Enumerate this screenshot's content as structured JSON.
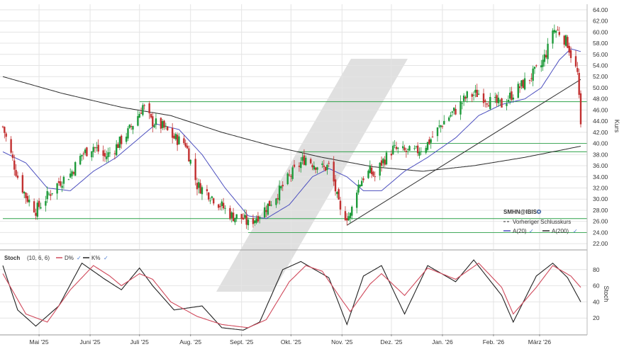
{
  "chart_data": [
    {
      "type": "candlestick",
      "panel": "price",
      "ylabel": "Kurs",
      "ylim": [
        21.0,
        65.0
      ],
      "yticks": [
        22,
        24,
        26,
        28,
        30,
        32,
        34,
        36,
        38,
        40,
        42,
        44,
        46,
        48,
        50,
        52,
        54,
        56,
        58,
        60,
        62,
        64
      ],
      "ytick_labels": [
        "22.00",
        "24.00",
        "26.00",
        "28.00",
        "30.00",
        "32.00",
        "34.00",
        "36.00",
        "38.00",
        "40.00",
        "42.00",
        "44.00",
        "46.00",
        "48.00",
        "50.00",
        "52.00",
        "54.00",
        "56.00",
        "58.00",
        "60.00",
        "62.00",
        "64.00"
      ],
      "x_months": [
        "Mai '25",
        "Juni '25",
        "Juli '25",
        "Aug. '25",
        "Sept. '25",
        "Okt. '25",
        "Nov. '25",
        "Dez. '25",
        "Jan. '26",
        "Feb. '26",
        "März '26"
      ],
      "grid": true,
      "legend": {
        "placement": "bottom-right",
        "symbol": "SMHN@IBIS",
        "previous_close_label": "Vorheriger Schlusskurs",
        "ma20_label": "A(20)",
        "ma200_label": "A(200)"
      },
      "close_path": [
        {
          "date": "2025-04-09",
          "close": 43.0
        },
        {
          "date": "2025-04-14",
          "close": 38.0
        },
        {
          "date": "2025-04-18",
          "close": 34.0
        },
        {
          "date": "2025-04-23",
          "close": 30.5
        },
        {
          "date": "2025-04-29",
          "close": 28.0
        },
        {
          "date": "2025-05-06",
          "close": 30.5
        },
        {
          "date": "2025-05-13",
          "close": 33.0
        },
        {
          "date": "2025-05-20",
          "close": 34.5
        },
        {
          "date": "2025-05-27",
          "close": 38.0
        },
        {
          "date": "2025-06-03",
          "close": 39.5
        },
        {
          "date": "2025-06-10",
          "close": 37.5
        },
        {
          "date": "2025-06-17",
          "close": 39.5
        },
        {
          "date": "2025-06-24",
          "close": 42.0
        },
        {
          "date": "2025-07-01",
          "close": 45.5
        },
        {
          "date": "2025-07-03",
          "close": 46.8
        },
        {
          "date": "2025-07-08",
          "close": 44.0
        },
        {
          "date": "2025-07-15",
          "close": 43.0
        },
        {
          "date": "2025-07-22",
          "close": 41.0
        },
        {
          "date": "2025-07-29",
          "close": 40.0
        },
        {
          "date": "2025-08-05",
          "close": 32.5
        },
        {
          "date": "2025-08-12",
          "close": 31.0
        },
        {
          "date": "2025-08-19",
          "close": 29.0
        },
        {
          "date": "2025-08-26",
          "close": 27.0
        },
        {
          "date": "2025-09-02",
          "close": 26.5
        },
        {
          "date": "2025-09-05",
          "close": 25.5
        },
        {
          "date": "2025-09-09",
          "close": 26.5
        },
        {
          "date": "2025-09-16",
          "close": 28.5
        },
        {
          "date": "2025-09-23",
          "close": 31.0
        },
        {
          "date": "2025-09-30",
          "close": 34.0
        },
        {
          "date": "2025-10-07",
          "close": 36.5
        },
        {
          "date": "2025-10-10",
          "close": 37.5
        },
        {
          "date": "2025-10-14",
          "close": 36.5
        },
        {
          "date": "2025-10-21",
          "close": 35.5
        },
        {
          "date": "2025-10-24",
          "close": 36.0
        },
        {
          "date": "2025-10-27",
          "close": 33.0
        },
        {
          "date": "2025-10-31",
          "close": 27.5
        },
        {
          "date": "2025-11-04",
          "close": 27.0
        },
        {
          "date": "2025-11-06",
          "close": 27.0
        },
        {
          "date": "2025-11-10",
          "close": 32.0
        },
        {
          "date": "2025-11-14",
          "close": 34.0
        },
        {
          "date": "2025-11-18",
          "close": 35.0
        },
        {
          "date": "2025-11-21",
          "close": 34.0
        },
        {
          "date": "2025-11-25",
          "close": 36.5
        },
        {
          "date": "2025-12-02",
          "close": 39.0
        },
        {
          "date": "2025-12-09",
          "close": 38.5
        },
        {
          "date": "2025-12-16",
          "close": 38.5
        },
        {
          "date": "2025-12-23",
          "close": 40.0
        },
        {
          "date": "2026-01-02",
          "close": 44.0
        },
        {
          "date": "2026-01-09",
          "close": 46.0
        },
        {
          "date": "2026-01-16",
          "close": 48.5
        },
        {
          "date": "2026-01-23",
          "close": 49.0
        },
        {
          "date": "2026-01-30",
          "close": 47.5
        },
        {
          "date": "2026-02-06",
          "close": 47.0
        },
        {
          "date": "2026-02-13",
          "close": 49.0
        },
        {
          "date": "2026-02-20",
          "close": 51.0
        },
        {
          "date": "2026-02-27",
          "close": 53.0
        },
        {
          "date": "2026-03-02",
          "close": 54.0
        },
        {
          "date": "2026-03-06",
          "close": 57.0
        },
        {
          "date": "2026-03-09",
          "close": 60.5
        },
        {
          "date": "2026-03-13",
          "close": 60.0
        },
        {
          "date": "2026-03-18",
          "close": 58.0
        },
        {
          "date": "2026-03-20",
          "close": 56.0
        },
        {
          "date": "2026-03-24",
          "close": 52.5
        },
        {
          "date": "2026-03-26",
          "close": 43.0
        }
      ],
      "ma20": [
        {
          "date": "2025-04-09",
          "value": 38.5
        },
        {
          "date": "2025-04-23",
          "value": 36.5
        },
        {
          "date": "2025-05-06",
          "value": 32.0
        },
        {
          "date": "2025-05-20",
          "value": 31.5
        },
        {
          "date": "2025-06-03",
          "value": 35.0
        },
        {
          "date": "2025-06-17",
          "value": 37.5
        },
        {
          "date": "2025-07-01",
          "value": 41.0
        },
        {
          "date": "2025-07-11",
          "value": 43.5
        },
        {
          "date": "2025-07-25",
          "value": 42.5
        },
        {
          "date": "2025-08-08",
          "value": 38.0
        },
        {
          "date": "2025-08-22",
          "value": 32.0
        },
        {
          "date": "2025-09-05",
          "value": 27.0
        },
        {
          "date": "2025-09-16",
          "value": 26.5
        },
        {
          "date": "2025-09-30",
          "value": 29.0
        },
        {
          "date": "2025-10-14",
          "value": 34.0
        },
        {
          "date": "2025-10-24",
          "value": 35.5
        },
        {
          "date": "2025-11-04",
          "value": 34.0
        },
        {
          "date": "2025-11-14",
          "value": 31.5
        },
        {
          "date": "2025-11-25",
          "value": 31.5
        },
        {
          "date": "2025-12-09",
          "value": 35.0
        },
        {
          "date": "2025-12-23",
          "value": 37.5
        },
        {
          "date": "2026-01-09",
          "value": 41.0
        },
        {
          "date": "2026-01-23",
          "value": 45.0
        },
        {
          "date": "2026-02-06",
          "value": 47.0
        },
        {
          "date": "2026-02-20",
          "value": 48.0
        },
        {
          "date": "2026-03-02",
          "value": 50.0
        },
        {
          "date": "2026-03-13",
          "value": 55.0
        },
        {
          "date": "2026-03-20",
          "value": 57.0
        },
        {
          "date": "2026-03-26",
          "value": 56.5
        }
      ],
      "ma200": [
        {
          "date": "2025-04-09",
          "value": 52.0
        },
        {
          "date": "2025-05-15",
          "value": 49.0
        },
        {
          "date": "2025-06-20",
          "value": 46.5
        },
        {
          "date": "2025-07-20",
          "value": 45.0
        },
        {
          "date": "2025-08-20",
          "value": 42.0
        },
        {
          "date": "2025-09-20",
          "value": 39.5
        },
        {
          "date": "2025-10-20",
          "value": 37.5
        },
        {
          "date": "2025-11-20",
          "value": 35.8
        },
        {
          "date": "2025-12-20",
          "value": 35.0
        },
        {
          "date": "2026-01-20",
          "value": 36.0
        },
        {
          "date": "2026-02-20",
          "value": 37.5
        },
        {
          "date": "2026-03-26",
          "value": 39.5
        }
      ],
      "horizontal_levels": [
        47.5,
        40.0,
        38.5,
        26.5,
        24.0
      ],
      "trendline": {
        "from": {
          "date": "2025-11-04",
          "value": 25.3
        },
        "to": {
          "date": "2026-03-26",
          "value": 51.5
        }
      }
    },
    {
      "type": "line",
      "panel": "oscillator",
      "title": "Stoch",
      "params": "(10, 6, 6)",
      "ylabel": "Stoch",
      "ylim": [
        0,
        100
      ],
      "yticks": [
        20,
        40,
        60,
        80
      ],
      "series": [
        {
          "name": "D%",
          "color": "#d04a5c",
          "values": [
            {
              "date": "2025-04-09",
              "value": 75
            },
            {
              "date": "2025-04-23",
              "value": 25
            },
            {
              "date": "2025-05-06",
              "value": 15
            },
            {
              "date": "2025-05-20",
              "value": 55
            },
            {
              "date": "2025-06-03",
              "value": 85
            },
            {
              "date": "2025-06-13",
              "value": 72
            },
            {
              "date": "2025-06-20",
              "value": 60
            },
            {
              "date": "2025-07-01",
              "value": 75
            },
            {
              "date": "2025-07-09",
              "value": 68
            },
            {
              "date": "2025-07-20",
              "value": 40
            },
            {
              "date": "2025-08-05",
              "value": 22
            },
            {
              "date": "2025-08-20",
              "value": 12
            },
            {
              "date": "2025-09-05",
              "value": 8
            },
            {
              "date": "2025-09-16",
              "value": 18
            },
            {
              "date": "2025-09-30",
              "value": 65
            },
            {
              "date": "2025-10-10",
              "value": 85
            },
            {
              "date": "2025-10-20",
              "value": 78
            },
            {
              "date": "2025-10-31",
              "value": 45
            },
            {
              "date": "2025-11-06",
              "value": 28
            },
            {
              "date": "2025-11-18",
              "value": 62
            },
            {
              "date": "2025-11-25",
              "value": 75
            },
            {
              "date": "2025-12-09",
              "value": 48
            },
            {
              "date": "2025-12-23",
              "value": 82
            },
            {
              "date": "2026-01-09",
              "value": 68
            },
            {
              "date": "2026-01-23",
              "value": 88
            },
            {
              "date": "2026-02-06",
              "value": 58
            },
            {
              "date": "2026-02-13",
              "value": 25
            },
            {
              "date": "2026-02-27",
              "value": 58
            },
            {
              "date": "2026-03-09",
              "value": 85
            },
            {
              "date": "2026-03-20",
              "value": 72
            },
            {
              "date": "2026-03-26",
              "value": 58
            }
          ]
        },
        {
          "name": "K%",
          "color": "#222222",
          "values": [
            {
              "date": "2025-04-09",
              "value": 85
            },
            {
              "date": "2025-04-18",
              "value": 30
            },
            {
              "date": "2025-04-29",
              "value": 10
            },
            {
              "date": "2025-05-13",
              "value": 35
            },
            {
              "date": "2025-05-27",
              "value": 88
            },
            {
              "date": "2025-06-10",
              "value": 68
            },
            {
              "date": "2025-06-20",
              "value": 55
            },
            {
              "date": "2025-07-01",
              "value": 82
            },
            {
              "date": "2025-07-09",
              "value": 60
            },
            {
              "date": "2025-07-22",
              "value": 30
            },
            {
              "date": "2025-08-08",
              "value": 35
            },
            {
              "date": "2025-08-20",
              "value": 8
            },
            {
              "date": "2025-09-02",
              "value": 5
            },
            {
              "date": "2025-09-12",
              "value": 15
            },
            {
              "date": "2025-09-26",
              "value": 80
            },
            {
              "date": "2025-10-07",
              "value": 90
            },
            {
              "date": "2025-10-24",
              "value": 70
            },
            {
              "date": "2025-11-04",
              "value": 12
            },
            {
              "date": "2025-11-14",
              "value": 72
            },
            {
              "date": "2025-11-25",
              "value": 85
            },
            {
              "date": "2025-12-09",
              "value": 25
            },
            {
              "date": "2025-12-23",
              "value": 85
            },
            {
              "date": "2026-01-09",
              "value": 65
            },
            {
              "date": "2026-01-20",
              "value": 92
            },
            {
              "date": "2026-02-06",
              "value": 48
            },
            {
              "date": "2026-02-13",
              "value": 15
            },
            {
              "date": "2026-02-27",
              "value": 72
            },
            {
              "date": "2026-03-09",
              "value": 88
            },
            {
              "date": "2026-03-18",
              "value": 70
            },
            {
              "date": "2026-03-26",
              "value": 40
            }
          ]
        }
      ]
    }
  ],
  "colors": {
    "up_candle": "#1e9a3a",
    "down_candle": "#c23030",
    "ma20": "#4c4fbf",
    "ma200": "#2b2b2b",
    "level": "#2fa24a",
    "grid": "#e4e4e4",
    "watermark": "#dadada"
  },
  "icons": {
    "legend_settings": "gear-icon",
    "series_toggle": "check-icon"
  }
}
